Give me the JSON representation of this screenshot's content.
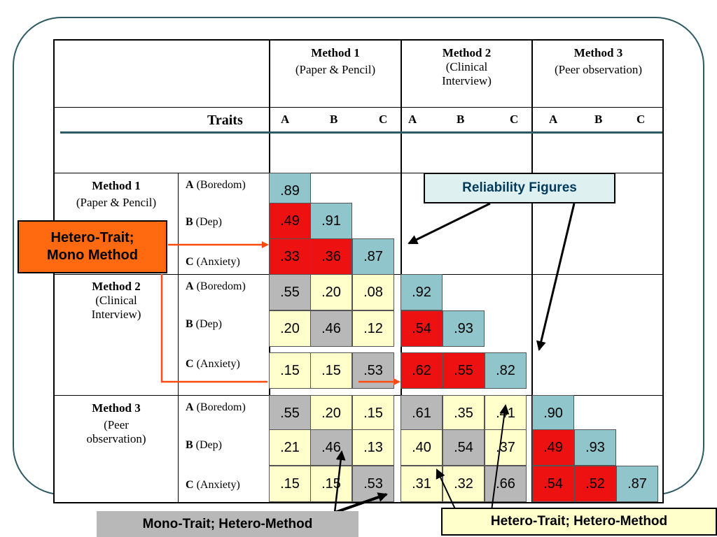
{
  "header": {
    "method1": {
      "name": "Method 1",
      "sub": "(Paper & Pencil)"
    },
    "method2": {
      "name": "Method 2",
      "sub1": "(Clinical",
      "sub2": "Interview)"
    },
    "method3": {
      "name": "Method 3",
      "sub": "(Peer observation)"
    },
    "traits_label": "Traits",
    "trait_letters": [
      "A",
      "B",
      "C"
    ]
  },
  "rows": {
    "method1": {
      "name": "Method 1",
      "sub": "(Paper & Pencil)"
    },
    "method2": {
      "name": "Method 2",
      "sub1": "(Clinical",
      "sub2": "Interview)"
    },
    "method3": {
      "name": "Method 3",
      "sub1": "(Peer",
      "sub2": "observation)"
    },
    "traits": [
      {
        "letter": "A",
        "name": "(Boredom)"
      },
      {
        "letter": "B",
        "name": "(Dep)"
      },
      {
        "letter": "C",
        "name": "(Anxiety)"
      }
    ]
  },
  "values": [
    [
      ".89"
    ],
    [
      ".49",
      ".91"
    ],
    [
      ".33",
      ".36",
      ".87"
    ],
    [
      ".55",
      ".20",
      ".08",
      ".92"
    ],
    [
      ".20",
      ".46",
      ".12",
      ".54",
      ".93"
    ],
    [
      ".15",
      ".15",
      ".53",
      ".62",
      ".55",
      ".82"
    ],
    [
      ".55",
      ".20",
      ".15",
      ".61",
      ".35",
      ".41",
      ".90"
    ],
    [
      ".21",
      ".46",
      ".13",
      ".40",
      ".54",
      ".37",
      ".49",
      ".93"
    ],
    [
      ".15",
      ".15",
      ".53",
      ".31",
      ".32",
      ".66",
      ".54",
      ".52",
      ".87"
    ]
  ],
  "callouts": {
    "reliability": "Reliability Figures",
    "htmm_line1": "Hetero-Trait;",
    "htmm_line2": "Mono Method",
    "mthm": "Mono-Trait;  Hetero-Method",
    "hthm": "Hetero-Trait;  Hetero-Method"
  },
  "colors": {
    "reliability": "#8fc5cb",
    "hetero_trait_mono_method": "#ee1111",
    "hetero_trait_hetero_method": "#ffffcc",
    "mono_trait_hetero_method": "#b8b8b8",
    "htmm_callout": "#ff6a10",
    "arrow_orange": "#ff4a10"
  }
}
